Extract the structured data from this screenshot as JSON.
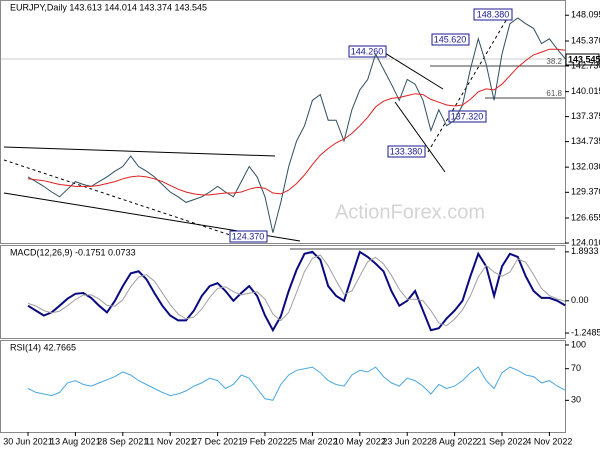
{
  "chart_data": [
    {
      "type": "line",
      "title": "EURJPY,Daily  143.613 144.014 143.374 143.545",
      "watermark": "ActionForex.com",
      "annotations": [
        "148.380",
        "145.620",
        "144.260",
        "137.320",
        "133.380",
        "124.370",
        "143.545",
        "38.2",
        "61.8"
      ],
      "ylim": [
        124.01,
        149.6
      ],
      "yticks": [
        148.095,
        {
          "value": 145.37,
          "label": "145.370"
        },
        {
          "value": 142.73,
          "label": "142.730"
        },
        140.015,
        137.375,
        134.735,
        {
          "value": 132.03,
          "label": "132.030"
        },
        {
          "value": 129.37,
          "label": "129.370"
        },
        126.655,
        {
          "value": 124.01,
          "label": "124.010"
        }
      ],
      "grid": false,
      "series": [
        {
          "color": "#2f4f5f",
          "values": [
            131.0,
            130.5,
            130.0,
            129.4,
            128.9,
            129.7,
            130.5,
            130.2,
            130.0,
            130.5,
            131.0,
            131.6,
            132.1,
            133.2,
            132.1,
            131.6,
            131.0,
            130.2,
            129.4,
            128.9,
            128.3,
            128.6,
            128.9,
            129.4,
            130.0,
            129.4,
            128.9,
            130.5,
            132.1,
            131.0,
            128.9,
            125.1,
            128.3,
            132.1,
            134.8,
            136.4,
            139.1,
            139.7,
            137.0,
            137.0,
            134.8,
            138.1,
            140.2,
            141.3,
            144.0,
            142.4,
            140.8,
            139.1,
            141.3,
            140.8,
            139.1,
            135.9,
            138.1,
            136.4,
            137.0,
            138.6,
            142.4,
            145.6,
            142.9,
            139.1,
            144.0,
            147.2,
            147.8,
            147.2,
            146.7,
            145.1,
            145.6,
            144.5,
            143.5
          ]
        },
        {
          "color": "#e02020",
          "values": [
            130.8,
            130.7,
            130.6,
            130.4,
            130.2,
            130.1,
            130.0,
            130.0,
            130.0,
            130.1,
            130.3,
            130.5,
            130.8,
            131.0,
            131.1,
            131.0,
            130.8,
            130.5,
            130.1,
            129.7,
            129.4,
            129.2,
            129.1,
            129.1,
            129.2,
            129.3,
            129.3,
            129.4,
            129.7,
            129.9,
            129.8,
            129.3,
            129.2,
            129.6,
            130.3,
            131.2,
            132.3,
            133.3,
            134.0,
            134.6,
            135.0,
            135.6,
            136.4,
            137.3,
            138.4,
            139.0,
            139.3,
            139.4,
            139.6,
            139.8,
            139.7,
            139.2,
            138.9,
            138.6,
            138.5,
            138.6,
            139.2,
            140.0,
            140.3,
            140.2,
            140.8,
            141.7,
            142.6,
            143.3,
            143.9,
            144.2,
            144.5,
            144.5,
            144.4
          ]
        }
      ]
    },
    {
      "type": "line",
      "title": "MACD(12,26,9) -0.1751 0.0733",
      "ylim": [
        -1.44,
        2.12
      ],
      "yticks": [
        1.8933,
        {
          "value": 0,
          "label": "0.00"
        },
        -1.2485
      ],
      "grid": false,
      "series": [
        {
          "color": "#0a0a80",
          "values": [
            -0.19,
            -0.38,
            -0.57,
            -0.45,
            -0.19,
            0.08,
            0.27,
            0.3,
            0.11,
            -0.19,
            -0.45,
            0,
            0.57,
            1.06,
            1.14,
            0.83,
            0.3,
            -0.19,
            -0.57,
            -0.76,
            -0.76,
            -0.38,
            0.19,
            0.57,
            0.68,
            0.38,
            0,
            0.3,
            0.57,
            0.19,
            -0.57,
            -1.14,
            -0.6,
            0.38,
            1.2,
            1.82,
            1.89,
            1.59,
            0.57,
            0.19,
            0,
            0.95,
            1.89,
            1.7,
            1.44,
            1.14,
            0.38,
            -0.19,
            0,
            0.38,
            -0.38,
            -1.14,
            -1.06,
            -0.68,
            -0.38,
            0,
            0.95,
            1.82,
            1.33,
            0.19,
            1.33,
            1.82,
            1.7,
            0.95,
            0.38,
            0.11,
            0.11,
            0,
            -0.18
          ]
        },
        {
          "color": "#a0a0a0",
          "values": [
            -0.1,
            -0.2,
            -0.38,
            -0.47,
            -0.4,
            -0.19,
            0.05,
            0.22,
            0.23,
            0.07,
            -0.18,
            -0.21,
            0.04,
            0.54,
            0.92,
            1.01,
            0.76,
            0.31,
            -0.15,
            -0.51,
            -0.7,
            -0.63,
            -0.32,
            0.13,
            0.48,
            0.54,
            0.35,
            0.23,
            0.29,
            0.35,
            0.06,
            -0.51,
            -0.77,
            -0.45,
            0.33,
            1.13,
            1.64,
            1.77,
            1.35,
            0.78,
            0.25,
            0.38,
            0.95,
            1.51,
            1.68,
            1.43,
            0.99,
            0.44,
            0.06,
            0.06,
            0,
            -0.38,
            -0.86,
            -0.96,
            -0.71,
            -0.35,
            0.19,
            0.92,
            1.37,
            1.11,
            0.95,
            1.11,
            1.62,
            1.49,
            1.01,
            0.48,
            0.2,
            0.07,
            -0.02
          ]
        }
      ]
    },
    {
      "type": "line",
      "title": "RSI(14) 42.7665",
      "ylim": [
        -10,
        105
      ],
      "yticks": [
        100,
        70,
        30
      ],
      "grid": false,
      "categories": [
        "30 Jun 2021",
        null,
        null,
        null,
        null,
        null,
        "13 Aug 2021",
        null,
        null,
        null,
        null,
        null,
        "28 Sep 2021",
        null,
        null,
        null,
        null,
        null,
        "11 Nov 2021",
        null,
        null,
        null,
        null,
        null,
        "27 Dec 2021",
        null,
        null,
        null,
        null,
        null,
        "9 Feb 2022",
        null,
        null,
        null,
        null,
        null,
        "25 Mar 2022",
        null,
        null,
        null,
        null,
        null,
        "10 May 2022",
        null,
        null,
        null,
        null,
        null,
        "23 Jun 2022",
        null,
        null,
        null,
        null,
        null,
        "8 Aug 2022",
        null,
        null,
        null,
        null,
        null,
        "21 Sep 2022",
        null,
        null,
        null,
        null,
        null,
        "4 Nov 2022",
        null,
        null
      ],
      "series": [
        {
          "color": "#49a8e0",
          "values": [
            45,
            40,
            38,
            36,
            40,
            52,
            55,
            50,
            48,
            52,
            56,
            60,
            66,
            62,
            55,
            50,
            45,
            40,
            36,
            38,
            42,
            48,
            52,
            58,
            55,
            45,
            50,
            62,
            58,
            45,
            32,
            30,
            50,
            62,
            68,
            70,
            72,
            65,
            55,
            50,
            48,
            62,
            68,
            66,
            72,
            60,
            52,
            48,
            58,
            55,
            48,
            38,
            50,
            45,
            48,
            55,
            65,
            72,
            55,
            45,
            65,
            72,
            68,
            62,
            60,
            52,
            55,
            48,
            42.8
          ]
        }
      ]
    }
  ]
}
